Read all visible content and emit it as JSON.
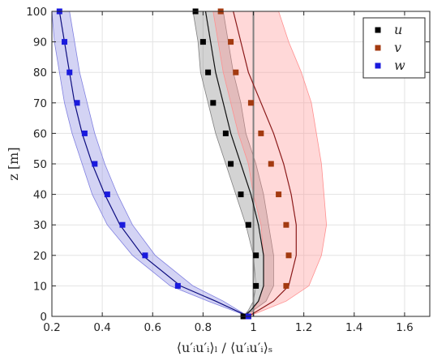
{
  "chart_data": {
    "type": "scatter",
    "xlabel": "⟨u′ᵢu′ᵢ⟩ₗ / ⟨u′ᵢu′ᵢ⟩ₛ",
    "ylabel": "z [m]",
    "xlim": [
      0.2,
      1.7
    ],
    "ylim": [
      0,
      100
    ],
    "xticks": [
      0.2,
      0.4,
      0.6,
      0.8,
      1,
      1.2,
      1.4,
      1.6
    ],
    "yticks": [
      0,
      10,
      20,
      30,
      40,
      50,
      60,
      70,
      80,
      90,
      100
    ],
    "xtick_labels": [
      "0.2",
      "0.4",
      "0.6",
      "0.8",
      "1",
      "1.2",
      "1.4",
      "1.6"
    ],
    "ytick_labels": [
      "0",
      "10",
      "20",
      "30",
      "40",
      "50",
      "60",
      "70",
      "80",
      "90",
      "100"
    ],
    "grid": true,
    "legend_position": "top-right",
    "reference_line_x": 1.0,
    "series": [
      {
        "name": "u",
        "color": "#000000",
        "line_color": "#111111",
        "band_color": "#808080",
        "points": [
          [
            0.96,
            0
          ],
          [
            1.01,
            10
          ],
          [
            1.01,
            20
          ],
          [
            0.98,
            30
          ],
          [
            0.95,
            40
          ],
          [
            0.91,
            50
          ],
          [
            0.89,
            60
          ],
          [
            0.84,
            70
          ],
          [
            0.82,
            80
          ],
          [
            0.8,
            90
          ],
          [
            0.77,
            100
          ]
        ],
        "line": [
          [
            0.96,
            0
          ],
          [
            0.99,
            2
          ],
          [
            1.02,
            5
          ],
          [
            1.04,
            10
          ],
          [
            1.04,
            20
          ],
          [
            1.02,
            30
          ],
          [
            0.99,
            40
          ],
          [
            0.95,
            50
          ],
          [
            0.91,
            60
          ],
          [
            0.88,
            70
          ],
          [
            0.85,
            80
          ],
          [
            0.83,
            90
          ],
          [
            0.81,
            100
          ]
        ],
        "band_lower": [
          [
            0.96,
            0
          ],
          [
            0.98,
            2
          ],
          [
            1.0,
            5
          ],
          [
            1.01,
            10
          ],
          [
            1.0,
            20
          ],
          [
            0.97,
            30
          ],
          [
            0.93,
            40
          ],
          [
            0.89,
            50
          ],
          [
            0.85,
            60
          ],
          [
            0.82,
            70
          ],
          [
            0.79,
            80
          ],
          [
            0.78,
            90
          ],
          [
            0.76,
            100
          ]
        ],
        "band_upper": [
          [
            0.96,
            0
          ],
          [
            1.0,
            2
          ],
          [
            1.05,
            5
          ],
          [
            1.08,
            10
          ],
          [
            1.08,
            20
          ],
          [
            1.06,
            30
          ],
          [
            1.04,
            40
          ],
          [
            1.01,
            50
          ],
          [
            0.97,
            60
          ],
          [
            0.95,
            70
          ],
          [
            0.92,
            80
          ],
          [
            0.9,
            90
          ],
          [
            0.88,
            100
          ]
        ]
      },
      {
        "name": "v",
        "color": "#A33A10",
        "line_color": "#8B1A1A",
        "band_color": "#FF9090",
        "points": [
          [
            0.98,
            0
          ],
          [
            1.13,
            10
          ],
          [
            1.14,
            20
          ],
          [
            1.13,
            30
          ],
          [
            1.1,
            40
          ],
          [
            1.07,
            50
          ],
          [
            1.03,
            60
          ],
          [
            0.99,
            70
          ],
          [
            0.93,
            80
          ],
          [
            0.91,
            90
          ],
          [
            0.87,
            100
          ]
        ],
        "line": [
          [
            0.98,
            0
          ],
          [
            1.02,
            2
          ],
          [
            1.08,
            5
          ],
          [
            1.14,
            10
          ],
          [
            1.17,
            20
          ],
          [
            1.17,
            30
          ],
          [
            1.15,
            40
          ],
          [
            1.12,
            50
          ],
          [
            1.08,
            60
          ],
          [
            1.03,
            70
          ],
          [
            0.98,
            80
          ],
          [
            0.95,
            90
          ],
          [
            0.92,
            100
          ]
        ],
        "band_lower": [
          [
            0.98,
            0
          ],
          [
            1.0,
            2
          ],
          [
            1.02,
            5
          ],
          [
            1.04,
            10
          ],
          [
            1.04,
            20
          ],
          [
            1.03,
            30
          ],
          [
            1.0,
            40
          ],
          [
            0.98,
            50
          ],
          [
            0.94,
            60
          ],
          [
            0.91,
            70
          ],
          [
            0.88,
            80
          ],
          [
            0.86,
            90
          ],
          [
            0.84,
            100
          ]
        ],
        "band_upper": [
          [
            0.98,
            0
          ],
          [
            1.04,
            2
          ],
          [
            1.13,
            5
          ],
          [
            1.22,
            10
          ],
          [
            1.27,
            20
          ],
          [
            1.29,
            30
          ],
          [
            1.28,
            40
          ],
          [
            1.27,
            50
          ],
          [
            1.25,
            60
          ],
          [
            1.23,
            70
          ],
          [
            1.19,
            80
          ],
          [
            1.14,
            90
          ],
          [
            1.1,
            100
          ]
        ]
      },
      {
        "name": "w",
        "color": "#1A1ADD",
        "line_color": "#0D0D80",
        "band_color": "#8080E0",
        "points": [
          [
            0.98,
            0
          ],
          [
            0.7,
            10
          ],
          [
            0.57,
            20
          ],
          [
            0.48,
            30
          ],
          [
            0.42,
            40
          ],
          [
            0.37,
            50
          ],
          [
            0.33,
            60
          ],
          [
            0.3,
            70
          ],
          [
            0.27,
            80
          ],
          [
            0.25,
            90
          ],
          [
            0.23,
            100
          ]
        ],
        "line": [
          [
            0.98,
            0
          ],
          [
            0.85,
            5
          ],
          [
            0.71,
            10
          ],
          [
            0.56,
            20
          ],
          [
            0.47,
            30
          ],
          [
            0.41,
            40
          ],
          [
            0.36,
            50
          ],
          [
            0.32,
            60
          ],
          [
            0.29,
            70
          ],
          [
            0.27,
            80
          ],
          [
            0.25,
            90
          ],
          [
            0.23,
            100
          ]
        ],
        "band_lower": [
          [
            0.98,
            0
          ],
          [
            0.82,
            5
          ],
          [
            0.67,
            10
          ],
          [
            0.52,
            20
          ],
          [
            0.42,
            30
          ],
          [
            0.36,
            40
          ],
          [
            0.32,
            50
          ],
          [
            0.28,
            60
          ],
          [
            0.25,
            70
          ],
          [
            0.23,
            80
          ],
          [
            0.21,
            90
          ],
          [
            0.2,
            100
          ]
        ],
        "band_upper": [
          [
            0.98,
            0
          ],
          [
            0.88,
            5
          ],
          [
            0.76,
            10
          ],
          [
            0.61,
            20
          ],
          [
            0.52,
            30
          ],
          [
            0.46,
            40
          ],
          [
            0.41,
            50
          ],
          [
            0.37,
            60
          ],
          [
            0.34,
            70
          ],
          [
            0.31,
            80
          ],
          [
            0.29,
            90
          ],
          [
            0.27,
            100
          ]
        ]
      }
    ]
  }
}
